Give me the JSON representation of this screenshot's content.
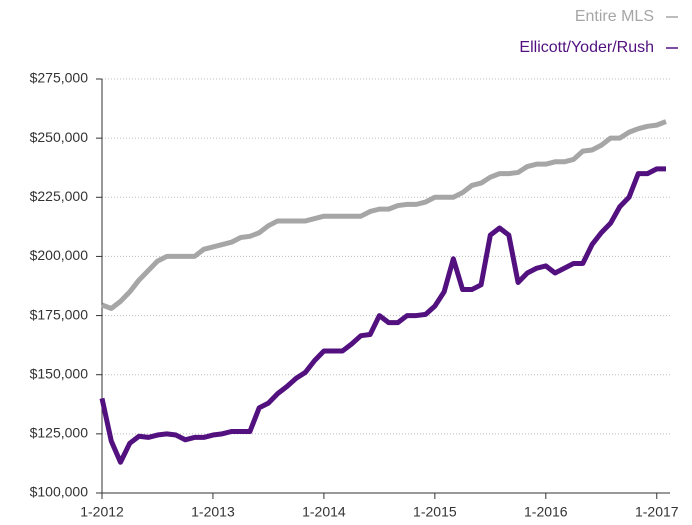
{
  "chart_data": {
    "type": "line",
    "x": [
      0,
      1,
      2,
      3,
      4,
      5,
      6,
      7,
      8,
      9,
      10,
      11,
      12,
      13,
      14,
      15,
      16,
      17,
      18,
      19,
      20,
      21,
      22,
      23,
      24,
      25,
      26,
      27,
      28,
      29,
      30,
      31,
      32,
      33,
      34,
      35,
      36,
      37,
      38,
      39,
      40,
      41,
      42,
      43,
      44,
      45,
      46,
      47,
      48,
      49,
      50,
      51,
      52,
      53,
      54,
      55,
      56,
      57,
      58,
      59,
      60,
      61
    ],
    "series": [
      {
        "name": "Entire MLS",
        "color": "#a6a6a6",
        "values": [
          179500,
          178000,
          181000,
          185000,
          190000,
          194000,
          198000,
          200000,
          200000,
          200000,
          200000,
          203000,
          204000,
          205000,
          206000,
          208000,
          208500,
          210000,
          213000,
          215000,
          215000,
          215000,
          215000,
          216000,
          217000,
          217000,
          217000,
          217000,
          217000,
          219000,
          220000,
          220000,
          221500,
          222000,
          222000,
          223000,
          225000,
          225000,
          225000,
          227000,
          230000,
          231000,
          233500,
          235000,
          235000,
          235500,
          238000,
          239000,
          239000,
          240000,
          240000,
          241000,
          244500,
          245000,
          247000,
          250000,
          250000,
          252500,
          254000,
          255000,
          255500,
          257000
        ]
      },
      {
        "name": "Ellicott/Yoder/Rush",
        "color": "#52117f",
        "values": [
          140000,
          122000,
          113000,
          121000,
          124000,
          123500,
          124500,
          125000,
          124500,
          122500,
          123500,
          123500,
          124500,
          125000,
          126000,
          126000,
          126000,
          136000,
          138000,
          142000,
          145000,
          148500,
          151000,
          156000,
          160000,
          160000,
          160000,
          163000,
          166500,
          167000,
          175000,
          172000,
          172000,
          175000,
          175000,
          175500,
          179000,
          185000,
          199000,
          186000,
          186000,
          188000,
          209000,
          212000,
          209000,
          189000,
          193000,
          195000,
          196000,
          193000,
          195000,
          197000,
          197000,
          205000,
          210000,
          214000,
          221000,
          225000,
          235000,
          235000,
          237000,
          237000
        ]
      }
    ],
    "xlim": [
      0,
      61
    ],
    "xticks": [
      {
        "value": 0,
        "label": "1-2012"
      },
      {
        "value": 12,
        "label": "1-2013"
      },
      {
        "value": 24,
        "label": "1-2014"
      },
      {
        "value": 36,
        "label": "1-2015"
      },
      {
        "value": 48,
        "label": "1-2016"
      },
      {
        "value": 60,
        "label": "1-2017"
      }
    ],
    "ylim": [
      100000,
      275000
    ],
    "yticks": [
      {
        "value": 100000,
        "label": "$100,000"
      },
      {
        "value": 125000,
        "label": "$125,000"
      },
      {
        "value": 150000,
        "label": "$150,000"
      },
      {
        "value": 175000,
        "label": "$175,000"
      },
      {
        "value": 200000,
        "label": "$200,000"
      },
      {
        "value": 225000,
        "label": "$225,000"
      },
      {
        "value": 250000,
        "label": "$250,000"
      },
      {
        "value": 275000,
        "label": "$275,000"
      }
    ],
    "grid": true
  }
}
